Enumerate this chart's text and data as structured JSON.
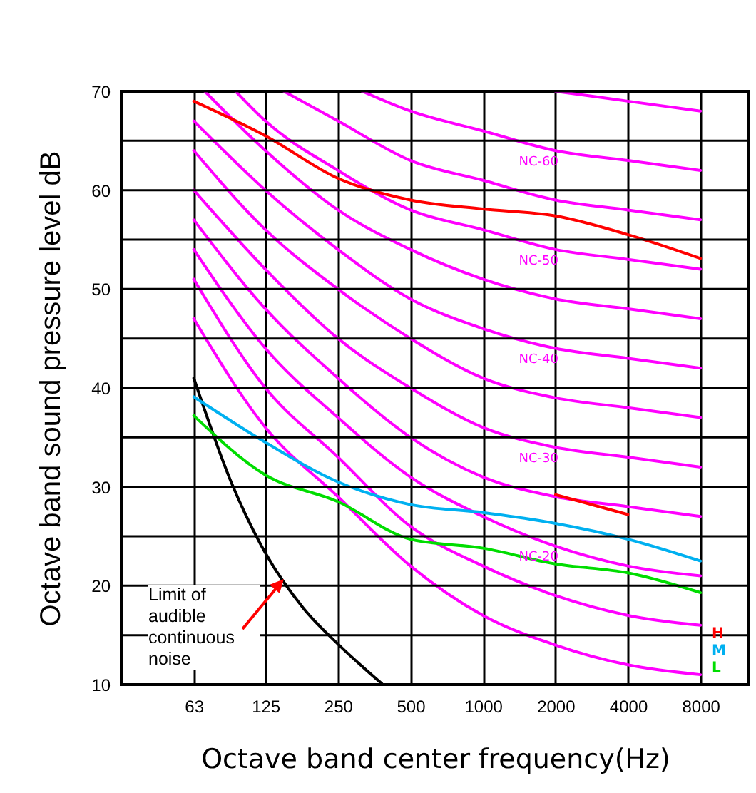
{
  "chart_data": {
    "type": "line",
    "xlabel": "Octave band center frequency(Hz)",
    "ylabel": "Octave band sound pressure level dB",
    "x": [
      63,
      125,
      250,
      500,
      1000,
      2000,
      4000,
      8000
    ],
    "log": "x",
    "xlim": [
      31.5,
      12700
    ],
    "xticks": [
      63,
      125,
      250,
      500,
      1000,
      2000,
      4000,
      8000
    ],
    "ylim": [
      10,
      70
    ],
    "yticks": [
      10,
      {
        "value": 15,
        "label": null
      },
      20,
      {
        "value": 25,
        "label": null
      },
      30,
      {
        "value": 35,
        "label": null
      },
      40,
      {
        "value": 45,
        "label": null
      },
      50,
      {
        "value": 55,
        "label": null
      },
      60,
      {
        "value": 65,
        "label": null
      },
      70
    ],
    "grid": true,
    "marker": "none",
    "series": [
      {
        "color": "#ff00ff",
        "values": [
          47,
          36,
          29,
          22,
          17,
          14,
          12,
          11
        ]
      },
      {
        "color": "#ff00ff",
        "values": [
          51,
          40,
          33,
          26,
          22,
          19,
          17,
          16
        ]
      },
      {
        "color": "#ff00ff",
        "values": [
          54,
          44,
          37,
          31,
          27,
          24,
          22,
          21
        ]
      },
      {
        "color": "#ff00ff",
        "values": [
          57,
          48,
          41,
          35,
          31,
          29,
          28,
          27
        ]
      },
      {
        "color": "#ff00ff",
        "values": [
          60,
          52,
          45,
          40,
          36,
          34,
          33,
          32
        ]
      },
      {
        "color": "#ff00ff",
        "values": [
          64,
          56,
          50,
          45,
          41,
          39,
          38,
          37
        ]
      },
      {
        "color": "#ff00ff",
        "values": [
          67,
          60,
          54,
          49,
          46,
          44,
          43,
          42
        ]
      },
      {
        "color": "#ff00ff",
        "x": [
          70,
          125,
          250,
          500,
          1000,
          2000,
          4000,
          8000
        ],
        "values": [
          70,
          64,
          58,
          54,
          51,
          49,
          48,
          47
        ]
      },
      {
        "color": "#ff00ff",
        "x": [
          94,
          125,
          250,
          500,
          1000,
          2000,
          4000,
          8000
        ],
        "values": [
          70,
          67,
          62,
          58,
          56,
          54,
          53,
          52
        ]
      },
      {
        "color": "#ff00ff",
        "x": [
          149,
          250,
          500,
          1000,
          2000,
          4000,
          8000
        ],
        "values": [
          70,
          67,
          63,
          61,
          59,
          58,
          57
        ]
      },
      {
        "color": "#ff00ff",
        "x": [
          315,
          500,
          1000,
          2000,
          4000,
          8000
        ],
        "values": [
          70,
          68,
          66,
          64,
          63,
          62
        ]
      },
      {
        "color": "#ff00ff",
        "x": [
          2000,
          4000,
          8000
        ],
        "values": [
          70,
          69,
          68
        ]
      },
      {
        "color": "#000000",
        "x": [
          63,
          90,
          125,
          180,
          250,
          380
        ],
        "values": [
          41,
          30.5,
          23.3,
          17.7,
          14.1,
          10.1
        ]
      },
      {
        "name": "H",
        "color": "#ff0000",
        "values": [
          69,
          65.5,
          61.2,
          59,
          58.1,
          57.4,
          55.5,
          53.1
        ]
      },
      {
        "name": "M",
        "color": "#00b0f0",
        "values": [
          39.1,
          34.5,
          30.5,
          28.2,
          27.4,
          26.3,
          24.7,
          22.5
        ]
      },
      {
        "name": "L",
        "color": "#00dd00",
        "values": [
          37.2,
          31.2,
          28.5,
          24.7,
          23.8,
          22.2,
          21.3,
          19.3
        ]
      },
      {
        "color": "#ff0000",
        "x": [
          2000,
          4000
        ],
        "values": [
          29.2,
          27.2
        ]
      }
    ],
    "annotations": [
      "Limit of audible continuous noise",
      "NC-60",
      "NC-50",
      "NC-40",
      "NC-30",
      "NC-20"
    ]
  }
}
